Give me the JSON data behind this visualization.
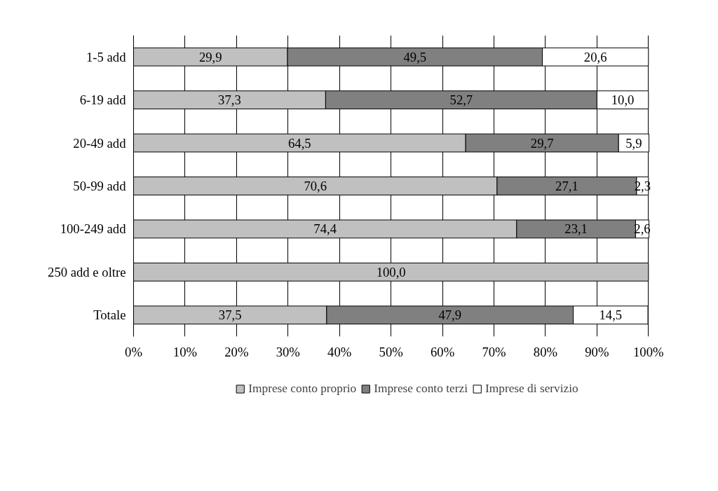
{
  "chart_data": {
    "type": "bar",
    "orientation": "horizontal",
    "stacked": true,
    "categories": [
      "1-5 add",
      "6-19 add",
      "20-49 add",
      "50-99 add",
      "100-249 add",
      "250 add e oltre",
      "Totale"
    ],
    "series": [
      {
        "name": "Imprese conto proprio",
        "color": "#c0c0c0",
        "values": [
          29.9,
          37.3,
          64.5,
          70.6,
          74.4,
          100.0,
          37.5
        ],
        "value_labels": [
          "29,9",
          "37,3",
          "64,5",
          "70,6",
          "74,4",
          "100,0",
          "37,5"
        ]
      },
      {
        "name": "Imprese conto terzi",
        "color": "#808080",
        "values": [
          49.5,
          52.7,
          29.7,
          27.1,
          23.1,
          null,
          47.9
        ],
        "value_labels": [
          "49,5",
          "52,7",
          "29,7",
          "27,1",
          "23,1",
          null,
          "47,9"
        ]
      },
      {
        "name": "Imprese di servizio",
        "color": "#ffffff",
        "values": [
          20.6,
          10.0,
          5.9,
          2.3,
          2.6,
          null,
          14.5
        ],
        "value_labels": [
          "20,6",
          "10,0",
          "5,9",
          "2,3",
          "2,6",
          null,
          "14,5"
        ]
      }
    ],
    "xlim": [
      0,
      100
    ],
    "xticks": [
      {
        "value": 0,
        "label": "0%"
      },
      {
        "value": 10,
        "label": "10%"
      },
      {
        "value": 20,
        "label": "20%"
      },
      {
        "value": 30,
        "label": "30%"
      },
      {
        "value": 40,
        "label": "40%"
      },
      {
        "value": 50,
        "label": "50%"
      },
      {
        "value": 60,
        "label": "60%"
      },
      {
        "value": 70,
        "label": "70%"
      },
      {
        "value": 80,
        "label": "80%"
      },
      {
        "value": 90,
        "label": "90%"
      },
      {
        "value": 100,
        "label": "100%"
      }
    ],
    "grid": "x",
    "legend": "bottom"
  }
}
